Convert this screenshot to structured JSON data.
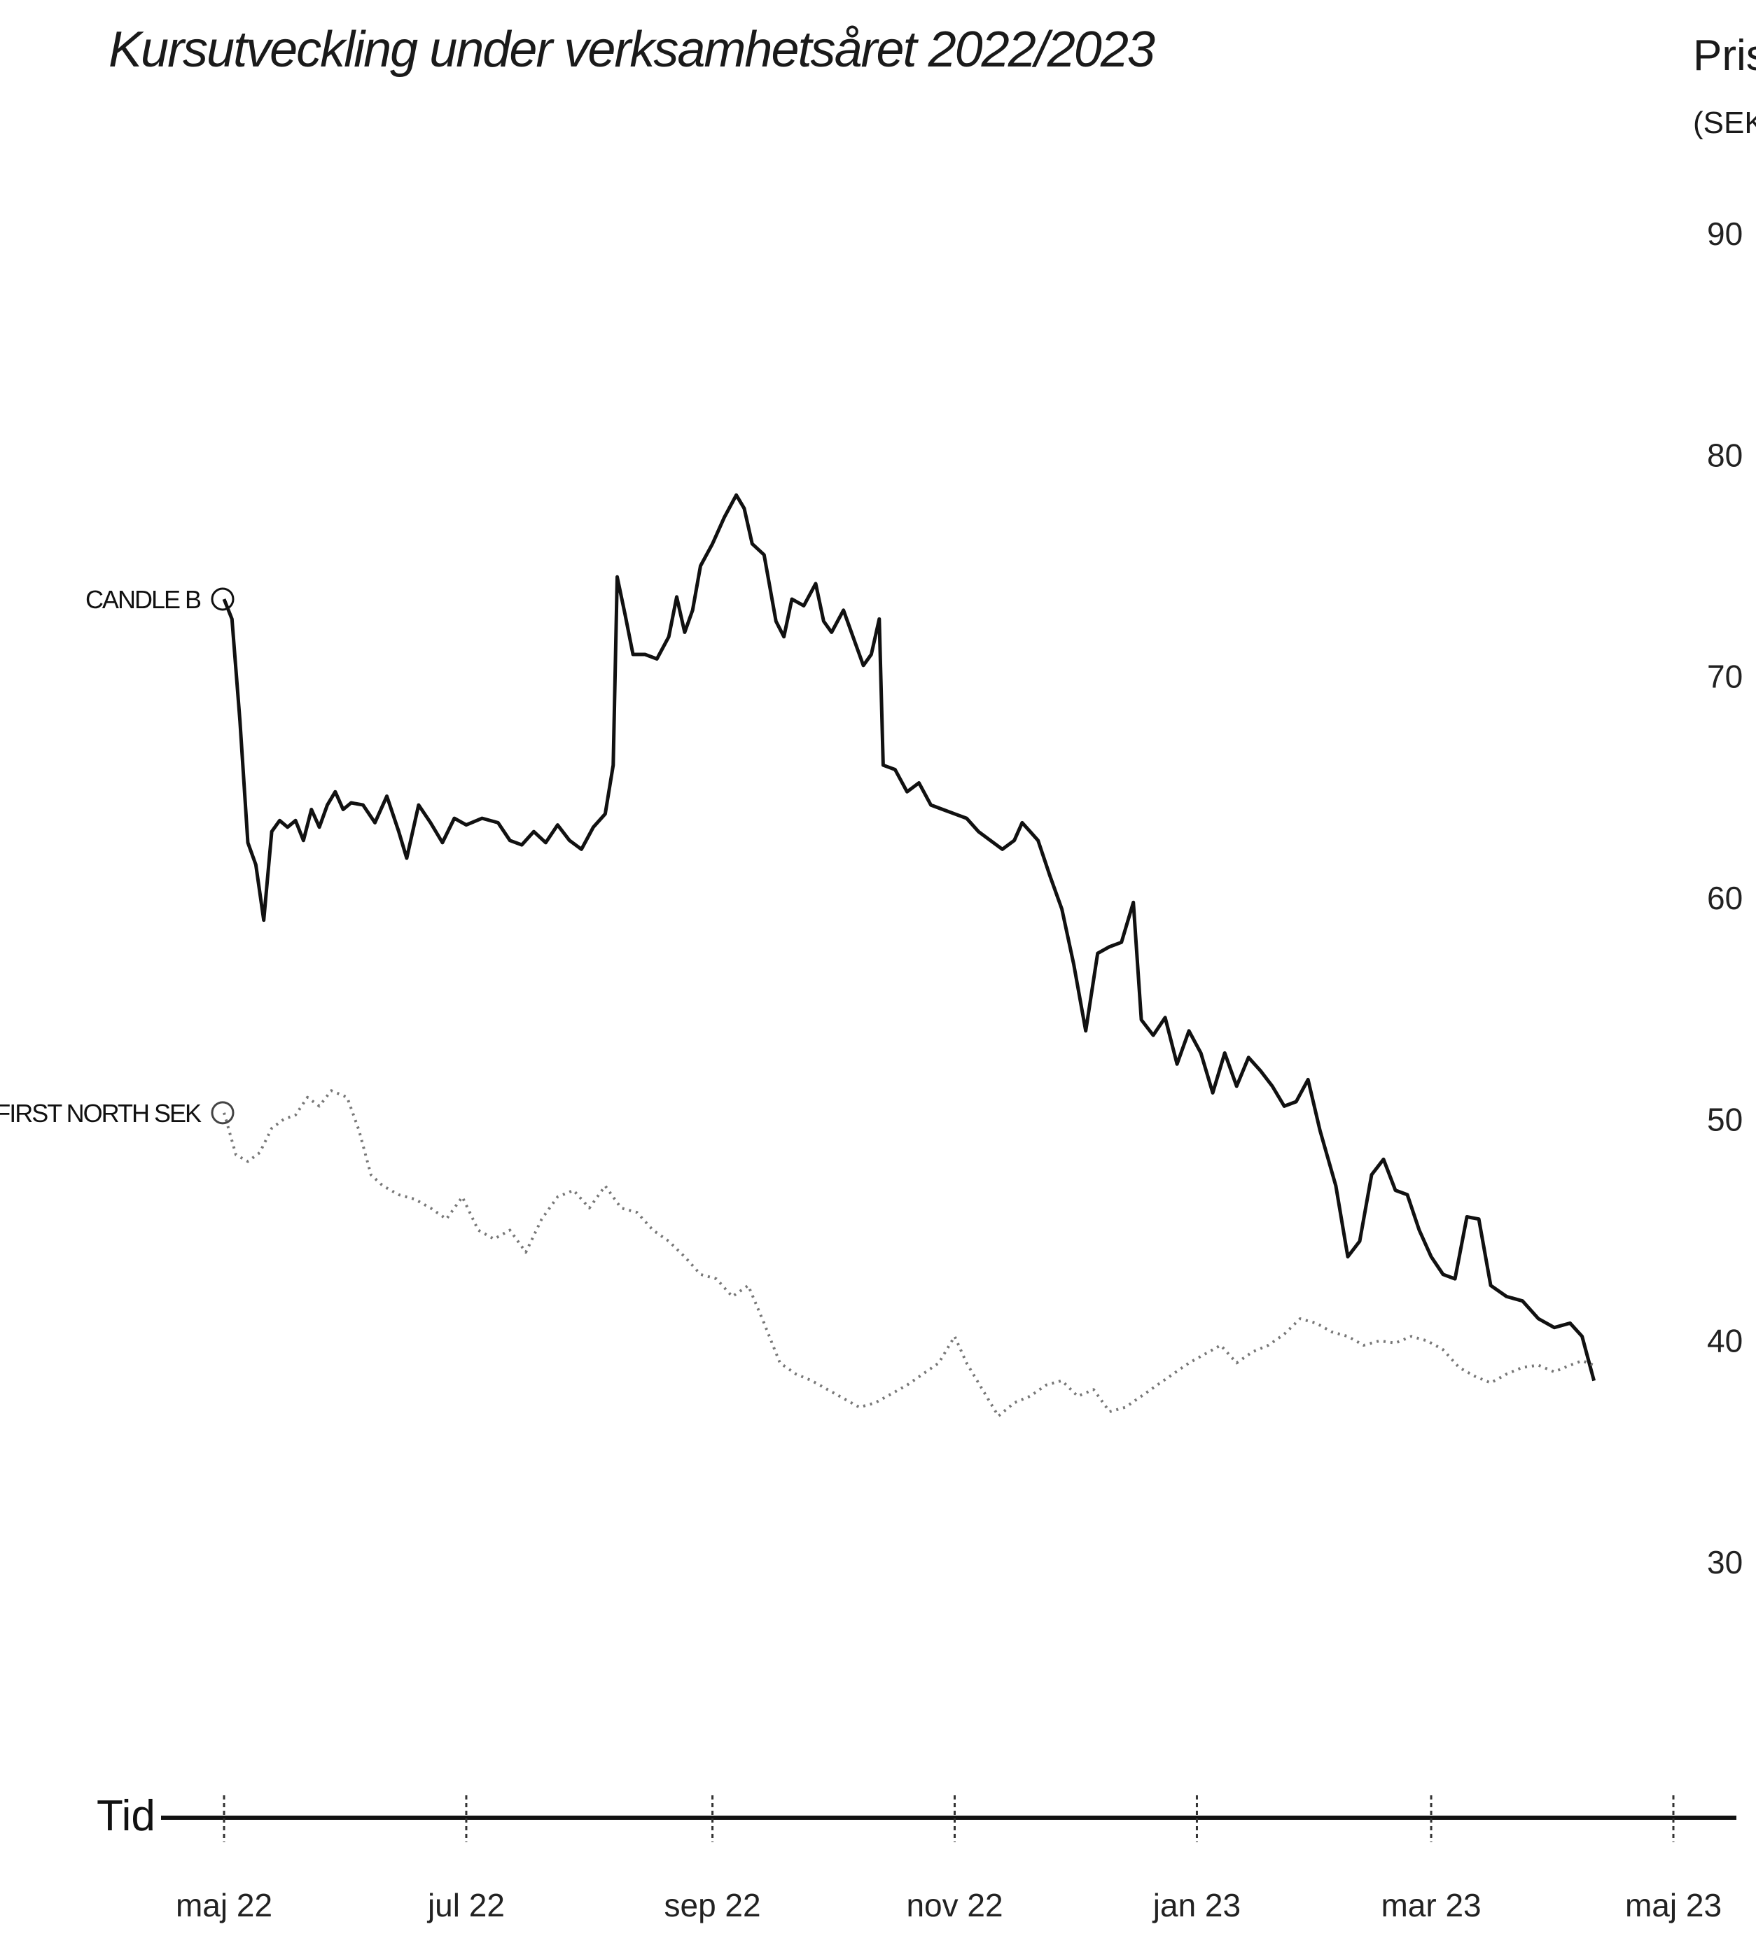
{
  "chart_data": {
    "type": "line",
    "title": "Kursutveckling under verksamhetsåret 2022/2023",
    "ylabel": "Pris",
    "yunit": "(SEK)",
    "xlabel": "Tid",
    "ylim": [
      25,
      95
    ],
    "yticks": [
      30,
      40,
      50,
      60,
      70,
      80,
      90
    ],
    "xticks": [
      {
        "date": "2022-05-01",
        "label": "maj 22"
      },
      {
        "date": "2022-07-01",
        "label": "jul 22"
      },
      {
        "date": "2022-09-01",
        "label": "sep 22"
      },
      {
        "date": "2022-11-01",
        "label": "nov 22"
      },
      {
        "date": "2023-01-01",
        "label": "jan 23"
      },
      {
        "date": "2023-03-01",
        "label": "mar 23"
      },
      {
        "date": "2023-05-01",
        "label": "maj 23"
      }
    ],
    "xlim": [
      "2022-04-28",
      "2023-05-10"
    ],
    "grid": false,
    "colors": {
      "candle": "#111111",
      "first_north": "#777777"
    },
    "series": [
      {
        "name": "CANDLE B",
        "style": "solid",
        "points": [
          [
            "2022-05-01",
            73.5
          ],
          [
            "2022-05-03",
            72.6
          ],
          [
            "2022-05-05",
            68.0
          ],
          [
            "2022-05-07",
            62.5
          ],
          [
            "2022-05-09",
            61.5
          ],
          [
            "2022-05-11",
            59.0
          ],
          [
            "2022-05-13",
            63.0
          ],
          [
            "2022-05-15",
            63.5
          ],
          [
            "2022-05-17",
            63.2
          ],
          [
            "2022-05-19",
            63.5
          ],
          [
            "2022-05-21",
            62.6
          ],
          [
            "2022-05-23",
            64.0
          ],
          [
            "2022-05-25",
            63.2
          ],
          [
            "2022-05-27",
            64.2
          ],
          [
            "2022-05-29",
            64.8
          ],
          [
            "2022-05-31",
            64.0
          ],
          [
            "2022-06-02",
            64.3
          ],
          [
            "2022-06-05",
            64.2
          ],
          [
            "2022-06-08",
            63.4
          ],
          [
            "2022-06-11",
            64.6
          ],
          [
            "2022-06-14",
            63.0
          ],
          [
            "2022-06-16",
            61.8
          ],
          [
            "2022-06-19",
            64.2
          ],
          [
            "2022-06-22",
            63.4
          ],
          [
            "2022-06-25",
            62.5
          ],
          [
            "2022-06-28",
            63.6
          ],
          [
            "2022-07-01",
            63.3
          ],
          [
            "2022-07-05",
            63.6
          ],
          [
            "2022-07-09",
            63.4
          ],
          [
            "2022-07-12",
            62.6
          ],
          [
            "2022-07-15",
            62.4
          ],
          [
            "2022-07-18",
            63.0
          ],
          [
            "2022-07-21",
            62.5
          ],
          [
            "2022-07-24",
            63.3
          ],
          [
            "2022-07-27",
            62.6
          ],
          [
            "2022-07-30",
            62.2
          ],
          [
            "2022-08-02",
            63.2
          ],
          [
            "2022-08-05",
            63.8
          ],
          [
            "2022-08-07",
            66.0
          ],
          [
            "2022-08-08",
            74.5
          ],
          [
            "2022-08-10",
            72.8
          ],
          [
            "2022-08-12",
            71.0
          ],
          [
            "2022-08-15",
            71.0
          ],
          [
            "2022-08-18",
            70.8
          ],
          [
            "2022-08-21",
            71.8
          ],
          [
            "2022-08-23",
            73.6
          ],
          [
            "2022-08-25",
            72.0
          ],
          [
            "2022-08-27",
            73.0
          ],
          [
            "2022-08-29",
            75.0
          ],
          [
            "2022-09-01",
            76.0
          ],
          [
            "2022-09-04",
            77.2
          ],
          [
            "2022-09-07",
            78.2
          ],
          [
            "2022-09-09",
            77.6
          ],
          [
            "2022-09-11",
            76.0
          ],
          [
            "2022-09-14",
            75.5
          ],
          [
            "2022-09-17",
            72.5
          ],
          [
            "2022-09-19",
            71.8
          ],
          [
            "2022-09-21",
            73.5
          ],
          [
            "2022-09-24",
            73.2
          ],
          [
            "2022-09-27",
            74.2
          ],
          [
            "2022-09-29",
            72.5
          ],
          [
            "2022-10-01",
            72.0
          ],
          [
            "2022-10-04",
            73.0
          ],
          [
            "2022-10-07",
            71.5
          ],
          [
            "2022-10-09",
            70.5
          ],
          [
            "2022-10-11",
            71.0
          ],
          [
            "2022-10-13",
            72.6
          ],
          [
            "2022-10-14",
            66.0
          ],
          [
            "2022-10-17",
            65.8
          ],
          [
            "2022-10-20",
            64.8
          ],
          [
            "2022-10-23",
            65.2
          ],
          [
            "2022-10-26",
            64.2
          ],
          [
            "2022-10-29",
            64.0
          ],
          [
            "2022-11-01",
            63.8
          ],
          [
            "2022-11-04",
            63.6
          ],
          [
            "2022-11-07",
            63.0
          ],
          [
            "2022-11-10",
            62.6
          ],
          [
            "2022-11-13",
            62.2
          ],
          [
            "2022-11-16",
            62.6
          ],
          [
            "2022-11-18",
            63.4
          ],
          [
            "2022-11-20",
            63.0
          ],
          [
            "2022-11-22",
            62.6
          ],
          [
            "2022-11-25",
            61.0
          ],
          [
            "2022-11-28",
            59.5
          ],
          [
            "2022-12-01",
            57.0
          ],
          [
            "2022-12-04",
            54.0
          ],
          [
            "2022-12-07",
            57.5
          ],
          [
            "2022-12-10",
            57.8
          ],
          [
            "2022-12-13",
            58.0
          ],
          [
            "2022-12-16",
            59.8
          ],
          [
            "2022-12-18",
            54.5
          ],
          [
            "2022-12-21",
            53.8
          ],
          [
            "2022-12-24",
            54.6
          ],
          [
            "2022-12-27",
            52.5
          ],
          [
            "2022-12-30",
            54.0
          ],
          [
            "2023-01-02",
            53.0
          ],
          [
            "2023-01-05",
            51.2
          ],
          [
            "2023-01-08",
            53.0
          ],
          [
            "2023-01-11",
            51.5
          ],
          [
            "2023-01-14",
            52.8
          ],
          [
            "2023-01-17",
            52.2
          ],
          [
            "2023-01-20",
            51.5
          ],
          [
            "2023-01-23",
            50.6
          ],
          [
            "2023-01-26",
            50.8
          ],
          [
            "2023-01-29",
            51.8
          ],
          [
            "2023-02-01",
            49.5
          ],
          [
            "2023-02-05",
            47.0
          ],
          [
            "2023-02-08",
            43.8
          ],
          [
            "2023-02-11",
            44.5
          ],
          [
            "2023-02-14",
            47.5
          ],
          [
            "2023-02-17",
            48.2
          ],
          [
            "2023-02-20",
            46.8
          ],
          [
            "2023-02-23",
            46.6
          ],
          [
            "2023-02-26",
            45.0
          ],
          [
            "2023-03-01",
            43.8
          ],
          [
            "2023-03-04",
            43.0
          ],
          [
            "2023-03-07",
            42.8
          ],
          [
            "2023-03-10",
            45.6
          ],
          [
            "2023-03-13",
            45.5
          ],
          [
            "2023-03-16",
            42.5
          ],
          [
            "2023-03-20",
            42.0
          ],
          [
            "2023-03-24",
            41.8
          ],
          [
            "2023-03-28",
            41.0
          ],
          [
            "2023-04-01",
            40.6
          ],
          [
            "2023-04-05",
            40.8
          ],
          [
            "2023-04-08",
            40.2
          ],
          [
            "2023-04-11",
            38.2
          ]
        ]
      },
      {
        "name": "FIRST NORTH SEK",
        "style": "dotted",
        "points": [
          [
            "2022-05-01",
            50.3
          ],
          [
            "2022-05-04",
            48.4
          ],
          [
            "2022-05-07",
            48.1
          ],
          [
            "2022-05-10",
            48.5
          ],
          [
            "2022-05-13",
            49.6
          ],
          [
            "2022-05-16",
            50.0
          ],
          [
            "2022-05-19",
            50.2
          ],
          [
            "2022-05-22",
            51.0
          ],
          [
            "2022-05-25",
            50.6
          ],
          [
            "2022-05-28",
            51.3
          ],
          [
            "2022-06-01",
            51.0
          ],
          [
            "2022-06-04",
            49.5
          ],
          [
            "2022-06-07",
            47.5
          ],
          [
            "2022-06-10",
            47.0
          ],
          [
            "2022-06-14",
            46.6
          ],
          [
            "2022-06-18",
            46.4
          ],
          [
            "2022-06-22",
            46.0
          ],
          [
            "2022-06-26",
            45.5
          ],
          [
            "2022-06-30",
            46.5
          ],
          [
            "2022-07-04",
            45.0
          ],
          [
            "2022-07-08",
            44.6
          ],
          [
            "2022-07-12",
            45.0
          ],
          [
            "2022-07-16",
            44.0
          ],
          [
            "2022-07-20",
            45.5
          ],
          [
            "2022-07-24",
            46.5
          ],
          [
            "2022-07-28",
            46.8
          ],
          [
            "2022-08-01",
            46.0
          ],
          [
            "2022-08-05",
            47.0
          ],
          [
            "2022-08-09",
            46.0
          ],
          [
            "2022-08-13",
            45.8
          ],
          [
            "2022-08-17",
            45.0
          ],
          [
            "2022-08-21",
            44.5
          ],
          [
            "2022-08-25",
            43.8
          ],
          [
            "2022-08-29",
            43.0
          ],
          [
            "2022-09-02",
            42.8
          ],
          [
            "2022-09-06",
            42.0
          ],
          [
            "2022-09-10",
            42.5
          ],
          [
            "2022-09-14",
            40.8
          ],
          [
            "2022-09-18",
            39.0
          ],
          [
            "2022-09-22",
            38.5
          ],
          [
            "2022-09-26",
            38.2
          ],
          [
            "2022-09-30",
            37.8
          ],
          [
            "2022-10-04",
            37.4
          ],
          [
            "2022-10-08",
            37.0
          ],
          [
            "2022-10-12",
            37.2
          ],
          [
            "2022-10-16",
            37.6
          ],
          [
            "2022-10-20",
            38.0
          ],
          [
            "2022-10-24",
            38.5
          ],
          [
            "2022-10-28",
            39.0
          ],
          [
            "2022-11-01",
            40.2
          ],
          [
            "2022-11-04",
            39.0
          ],
          [
            "2022-11-08",
            37.8
          ],
          [
            "2022-11-12",
            36.6
          ],
          [
            "2022-11-16",
            37.2
          ],
          [
            "2022-11-20",
            37.5
          ],
          [
            "2022-11-24",
            38.0
          ],
          [
            "2022-11-28",
            38.2
          ],
          [
            "2022-12-02",
            37.5
          ],
          [
            "2022-12-06",
            37.8
          ],
          [
            "2022-12-10",
            36.8
          ],
          [
            "2022-12-14",
            37.0
          ],
          [
            "2022-12-18",
            37.5
          ],
          [
            "2022-12-22",
            38.0
          ],
          [
            "2022-12-26",
            38.5
          ],
          [
            "2022-12-30",
            39.0
          ],
          [
            "2023-01-03",
            39.4
          ],
          [
            "2023-01-07",
            39.8
          ],
          [
            "2023-01-11",
            39.0
          ],
          [
            "2023-01-15",
            39.5
          ],
          [
            "2023-01-19",
            39.8
          ],
          [
            "2023-01-23",
            40.3
          ],
          [
            "2023-01-27",
            41.0
          ],
          [
            "2023-01-31",
            40.8
          ],
          [
            "2023-02-04",
            40.4
          ],
          [
            "2023-02-08",
            40.2
          ],
          [
            "2023-02-12",
            39.8
          ],
          [
            "2023-02-16",
            40.0
          ],
          [
            "2023-02-20",
            39.9
          ],
          [
            "2023-02-24",
            40.2
          ],
          [
            "2023-02-28",
            40.0
          ],
          [
            "2023-03-04",
            39.6
          ],
          [
            "2023-03-08",
            38.8
          ],
          [
            "2023-03-12",
            38.4
          ],
          [
            "2023-03-16",
            38.1
          ],
          [
            "2023-03-20",
            38.5
          ],
          [
            "2023-03-24",
            38.8
          ],
          [
            "2023-03-28",
            38.9
          ],
          [
            "2023-04-01",
            38.6
          ],
          [
            "2023-04-05",
            38.9
          ],
          [
            "2023-04-08",
            39.1
          ],
          [
            "2023-04-11",
            38.9
          ]
        ]
      }
    ]
  }
}
